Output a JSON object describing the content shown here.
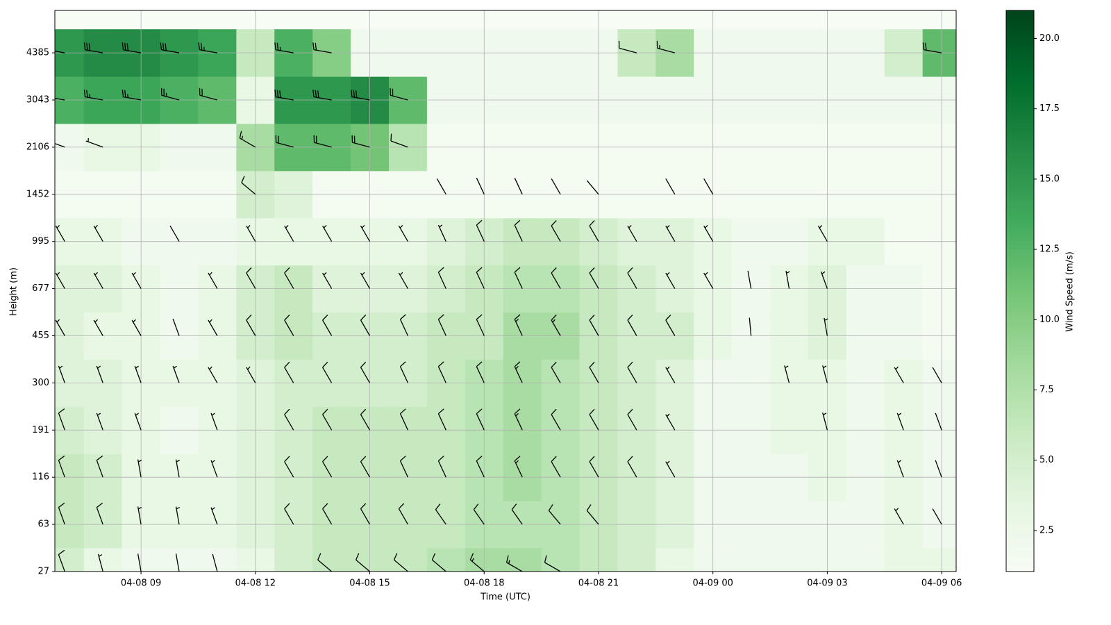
{
  "chart_data": {
    "type": "heatmap-barbs",
    "xlabel": "Time (UTC)",
    "ylabel": "Height (m)",
    "colorbar_label": "Wind Speed (m/s)",
    "grid": true,
    "xlim": [
      6.74,
      30.38
    ],
    "ylim": [
      0,
      11.9
    ],
    "xticks": [
      {
        "value": 9,
        "label": "04-08 09"
      },
      {
        "value": 12,
        "label": "04-08 12"
      },
      {
        "value": 15,
        "label": "04-08 15"
      },
      {
        "value": 18,
        "label": "04-08 18"
      },
      {
        "value": 21,
        "label": "04-08 21"
      },
      {
        "value": 24,
        "label": "04-09 00"
      },
      {
        "value": 27,
        "label": "04-09 03"
      },
      {
        "value": 30,
        "label": "04-09 06"
      }
    ],
    "yticks": [
      {
        "value": 0,
        "label": "27"
      },
      {
        "value": 1,
        "label": "63"
      },
      {
        "value": 2,
        "label": "116"
      },
      {
        "value": 3,
        "label": "191"
      },
      {
        "value": 4,
        "label": "300"
      },
      {
        "value": 5,
        "label": "455"
      },
      {
        "value": 6,
        "label": "677"
      },
      {
        "value": 7,
        "label": "995"
      },
      {
        "value": 8,
        "label": "1452"
      },
      {
        "value": 9,
        "label": "2106"
      },
      {
        "value": 10,
        "label": "3043"
      },
      {
        "value": 11,
        "label": "4385"
      }
    ],
    "clim": [
      1.04,
      21.0
    ],
    "cticks": [
      2.5,
      {
        "value": 5,
        "label": "5.0"
      },
      7.5,
      {
        "value": 10,
        "label": "10.0"
      },
      12.5,
      {
        "value": 15,
        "label": "15.0"
      },
      17.5,
      {
        "value": 20,
        "label": "20.0"
      }
    ],
    "cmap": [
      "#f7fcf5",
      "#e5f5e0",
      "#c7e9c0",
      "#a1d99b",
      "#74c476",
      "#41ab5d",
      "#238b45",
      "#006d2c",
      "#00441b"
    ],
    "barb_color": "#000000",
    "x": [
      7,
      8,
      9,
      10,
      11,
      12,
      13,
      14,
      15,
      16,
      17,
      18,
      19,
      20,
      21,
      22,
      23,
      24,
      25,
      26,
      27,
      28,
      29,
      30
    ],
    "y": [
      0,
      1,
      2,
      3,
      4,
      5,
      6,
      7,
      8,
      9,
      10,
      11
    ],
    "speed": [
      [
        5,
        3,
        2,
        2,
        2,
        3,
        5,
        6,
        6,
        6,
        7,
        8,
        8,
        7,
        6,
        5,
        3,
        2,
        2,
        2,
        2,
        2,
        3,
        3
      ],
      [
        6,
        5,
        3,
        3,
        3,
        4,
        5,
        6,
        6,
        6,
        6,
        7,
        7,
        7,
        6,
        5,
        4,
        2,
        2,
        2,
        2,
        2,
        3,
        2
      ],
      [
        6,
        5,
        3,
        3,
        3,
        4,
        5,
        6,
        6,
        6,
        6,
        7,
        8,
        7,
        6,
        5,
        4,
        2,
        2,
        2,
        3,
        2,
        3,
        2
      ],
      [
        5,
        4,
        3,
        2,
        3,
        4,
        5,
        6,
        6,
        6,
        6,
        7,
        8,
        7,
        6,
        5,
        4,
        2,
        2,
        3,
        3,
        2,
        3,
        2
      ],
      [
        4,
        4,
        3,
        3,
        3,
        4,
        5,
        5,
        5,
        5,
        6,
        7,
        8,
        7,
        6,
        5,
        4,
        2,
        2,
        3,
        3,
        2,
        3,
        2
      ],
      [
        4,
        3,
        3,
        2,
        3,
        5,
        6,
        5,
        5,
        5,
        6,
        6,
        8,
        8,
        6,
        5,
        5,
        3,
        2,
        3,
        4,
        2,
        2,
        1.5
      ],
      [
        4,
        4,
        3,
        2,
        3,
        5,
        6,
        4,
        4,
        4,
        5,
        6,
        7,
        7,
        6,
        5,
        4,
        3,
        2,
        3,
        4,
        2,
        2,
        1.5
      ],
      [
        3,
        3,
        2,
        2,
        2,
        3,
        3,
        3,
        3,
        3,
        4,
        5,
        6,
        6,
        5,
        4,
        4,
        3,
        2,
        2,
        3,
        3,
        1.5,
        1.5
      ],
      [
        1.5,
        1.5,
        1.5,
        1.5,
        1.5,
        5,
        4,
        1.5,
        1.5,
        1.5,
        1.5,
        1.5,
        1.5,
        1.5,
        1.5,
        1.5,
        1.5,
        1.5,
        1.5,
        1.5,
        1.5,
        1.5,
        1.5,
        1.5
      ],
      [
        2,
        3,
        3,
        2,
        2,
        8,
        12,
        12,
        11,
        7,
        1.5,
        1.5,
        1.5,
        1.5,
        1.5,
        1.5,
        1.5,
        1.5,
        1.5,
        1.5,
        1.5,
        1.5,
        1.5,
        1.5
      ],
      [
        13,
        14,
        14,
        13,
        12,
        3,
        15,
        15,
        16,
        12,
        2,
        2,
        2,
        2,
        2,
        2,
        2,
        2,
        2,
        2,
        2,
        2,
        2,
        2
      ],
      [
        15,
        16,
        16,
        15,
        14,
        6,
        13,
        10,
        2,
        2,
        2,
        2,
        2,
        2,
        2,
        6,
        8,
        2,
        2,
        2,
        2,
        2,
        5,
        12
      ]
    ],
    "direction": [
      [
        340,
        345,
        350,
        350,
        345,
        null,
        null,
        310,
        310,
        310,
        310,
        310,
        300,
        300,
        null,
        null,
        null,
        null,
        null,
        null,
        null,
        null,
        null,
        null
      ],
      [
        340,
        340,
        350,
        350,
        340,
        null,
        330,
        330,
        330,
        330,
        325,
        325,
        325,
        320,
        320,
        null,
        null,
        null,
        null,
        null,
        null,
        null,
        330,
        330
      ],
      [
        340,
        340,
        350,
        350,
        340,
        null,
        330,
        330,
        330,
        335,
        335,
        335,
        335,
        330,
        330,
        330,
        330,
        null,
        null,
        null,
        null,
        null,
        340,
        340
      ],
      [
        340,
        340,
        340,
        null,
        340,
        null,
        330,
        330,
        330,
        335,
        335,
        335,
        335,
        330,
        330,
        330,
        330,
        null,
        null,
        null,
        345,
        null,
        340,
        340
      ],
      [
        340,
        340,
        340,
        340,
        330,
        330,
        330,
        330,
        330,
        335,
        335,
        335,
        335,
        330,
        330,
        330,
        330,
        null,
        null,
        345,
        345,
        null,
        330,
        330
      ],
      [
        330,
        330,
        330,
        340,
        330,
        330,
        330,
        330,
        330,
        335,
        335,
        335,
        335,
        330,
        330,
        330,
        330,
        null,
        355,
        null,
        350,
        null,
        null,
        null
      ],
      [
        330,
        330,
        330,
        null,
        330,
        330,
        330,
        330,
        330,
        330,
        335,
        335,
        335,
        330,
        330,
        330,
        330,
        330,
        350,
        350,
        340,
        null,
        null,
        null
      ],
      [
        330,
        330,
        null,
        330,
        null,
        330,
        330,
        330,
        330,
        330,
        335,
        335,
        335,
        330,
        330,
        330,
        330,
        330,
        null,
        null,
        330,
        null,
        null,
        null
      ],
      [
        null,
        null,
        null,
        null,
        null,
        310,
        null,
        null,
        null,
        null,
        330,
        335,
        335,
        330,
        320,
        null,
        330,
        330,
        null,
        null,
        null,
        null,
        null,
        null
      ],
      [
        290,
        290,
        null,
        null,
        null,
        300,
        285,
        285,
        285,
        290,
        null,
        null,
        null,
        null,
        null,
        null,
        null,
        null,
        null,
        null,
        null,
        null,
        null,
        null
      ],
      [
        280,
        280,
        280,
        285,
        285,
        null,
        280,
        280,
        280,
        285,
        null,
        null,
        null,
        null,
        null,
        null,
        null,
        null,
        null,
        null,
        null,
        null,
        null,
        null
      ],
      [
        280,
        280,
        280,
        280,
        280,
        null,
        280,
        280,
        null,
        null,
        null,
        null,
        null,
        null,
        null,
        285,
        285,
        null,
        null,
        null,
        null,
        null,
        null,
        280
      ]
    ]
  }
}
